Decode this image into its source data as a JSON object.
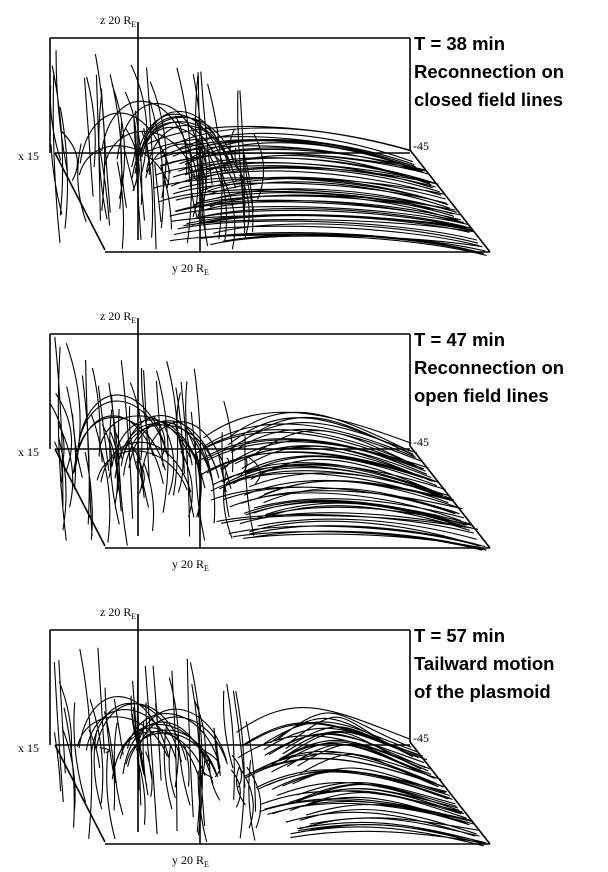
{
  "panels": [
    {
      "title": [
        "T = 38 min",
        "Reconnection on",
        "closed field lines"
      ],
      "z_label": "z 20 R",
      "z_sub": "E",
      "x_label": "x 15",
      "right_label": "-45",
      "y_label": "y 20 R",
      "y_sub": "E"
    },
    {
      "title": [
        "T = 47 min",
        "Reconnection on",
        "open field lines"
      ],
      "z_label": "z 20 R",
      "z_sub": "E",
      "x_label": "x 15",
      "right_label": "-45",
      "y_label": "y 20 R",
      "y_sub": "E"
    },
    {
      "title": [
        "T = 57 min",
        "Tailward motion",
        "of the plasmoid"
      ],
      "z_label": "z 20 R",
      "z_sub": "E",
      "x_label": "x 15",
      "right_label": "-45",
      "y_label": "y 20 R",
      "y_sub": "E"
    }
  ]
}
